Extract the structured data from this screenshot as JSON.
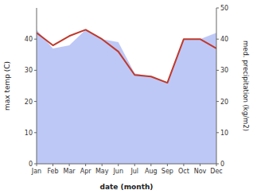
{
  "chart_data": {
    "type": "line",
    "xlabel": "date (month)",
    "ylabel": "max temp (C)",
    "y2label": "med. precipitation (kg/m2)",
    "categories": [
      "Jan",
      "Feb",
      "Mar",
      "Apr",
      "May",
      "Jun",
      "Jul",
      "Aug",
      "Sep",
      "Oct",
      "Nov",
      "Dec"
    ],
    "series": [
      {
        "type": "area",
        "axis": "y2",
        "color": "#b3bef5",
        "values": [
          43,
          37,
          38,
          43,
          40,
          39,
          29,
          28,
          26,
          40,
          40,
          42
        ]
      },
      {
        "type": "line",
        "color": "#c0392b",
        "values": [
          42,
          38,
          41,
          43,
          40,
          36,
          28.5,
          28,
          26,
          40,
          40,
          37
        ]
      }
    ],
    "ylim": [
      0,
      50
    ],
    "yticks": [
      0,
      10,
      20,
      30,
      40
    ],
    "y2lim": [
      0,
      50
    ],
    "y2ticks": [
      0,
      10,
      20,
      30,
      40,
      50
    ],
    "grid": false
  }
}
